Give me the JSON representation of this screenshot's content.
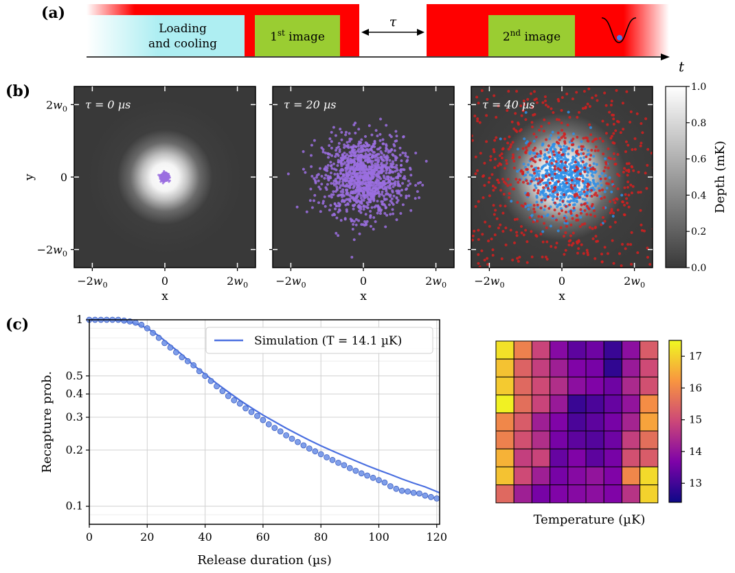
{
  "panel_labels": [
    "(a)",
    "(b)",
    "(c)"
  ],
  "timeline": {
    "loading_line1": "Loading",
    "loading_line2": "and cooling",
    "image1_base": "1",
    "image1_sup": "st",
    "image1_rest": " image",
    "image2_base": "2",
    "image2_sup": "nd",
    "image2_rest": " image",
    "tau": "τ",
    "t_label": "t",
    "colors": {
      "laser": "#ff0000",
      "loading": "#aeeef2",
      "image": "#9acd32"
    }
  },
  "chart_data": [
    {
      "type": "scatter",
      "panel": "b1",
      "annotation": "τ = 0 µs",
      "xlabel": "x",
      "ylabel": "y",
      "xticks": [
        "−2w0",
        "0",
        "2w0"
      ],
      "yticks": [
        "2w0",
        "0",
        "−2w0"
      ],
      "xlim": [
        -2.5,
        2.5
      ],
      "ylim": [
        -2.5,
        2.5
      ],
      "series": [
        {
          "color": "#9b6ee0",
          "spread": 0.05,
          "count": 500
        }
      ]
    },
    {
      "type": "scatter",
      "panel": "b2",
      "annotation": "τ = 20 µs",
      "xlabel": "x",
      "xticks": [
        "−2w0",
        "0",
        "2w0"
      ],
      "xlim": [
        -2.5,
        2.5
      ],
      "ylim": [
        -2.5,
        2.5
      ],
      "series": [
        {
          "color": "#9b6ee0",
          "spread": 0.55,
          "count": 1200
        }
      ]
    },
    {
      "type": "scatter",
      "panel": "b3",
      "annotation": "τ = 40 µs",
      "xlabel": "x",
      "xticks": [
        "−2w0",
        "0",
        "2w0"
      ],
      "xlim": [
        -2.5,
        2.5
      ],
      "ylim": [
        -2.5,
        2.5
      ],
      "series": [
        {
          "color": "#2f8fe8",
          "spread": 0.5,
          "count": 700
        },
        {
          "color": "#d42020",
          "spread": 1.6,
          "count": 800
        }
      ]
    },
    {
      "type": "heatmap",
      "panel": "b-colorbar",
      "ylabel": "Depth (mK)",
      "ticks": [
        "0.0",
        "0.2",
        "0.4",
        "0.6",
        "0.8",
        "1.0"
      ],
      "range": [
        0,
        1
      ]
    },
    {
      "type": "line",
      "panel": "c-main",
      "xlabel": "Release duration (µs)",
      "ylabel": "Recapture prob.",
      "xlim": [
        0,
        121
      ],
      "ylim": [
        0.08,
        1
      ],
      "yscale": "log",
      "xticks": [
        0,
        20,
        40,
        60,
        80,
        100,
        120
      ],
      "yticks": [
        {
          "v": 1,
          "label": "1"
        },
        {
          "v": 0.5,
          "label": "0.5"
        },
        {
          "v": 0.4,
          "label": "0.4"
        },
        {
          "v": 0.3,
          "label": "0.3"
        },
        {
          "v": 0.2,
          "label": "0.2"
        },
        {
          "v": 0.1,
          "label": "0.1"
        }
      ],
      "grid": true,
      "legend": "top-right",
      "series": [
        {
          "name": "Simulation (T = 14.1 µK)",
          "kind": "line",
          "color": "#4a6fe0",
          "x": [
            0,
            4,
            8,
            12,
            16,
            20,
            24,
            28,
            32,
            36,
            40,
            44,
            48,
            52,
            56,
            60,
            64,
            68,
            72,
            76,
            80,
            84,
            88,
            92,
            96,
            100,
            104,
            108,
            112,
            116,
            121
          ],
          "y": [
            1,
            1,
            0.998,
            0.985,
            0.955,
            0.9,
            0.82,
            0.73,
            0.65,
            0.57,
            0.51,
            0.455,
            0.41,
            0.37,
            0.337,
            0.308,
            0.284,
            0.262,
            0.243,
            0.226,
            0.211,
            0.198,
            0.186,
            0.175,
            0.165,
            0.156,
            0.148,
            0.14,
            0.133,
            0.127,
            0.118
          ]
        },
        {
          "kind": "points",
          "color": "#6a8ee6",
          "x": [
            0,
            2,
            4,
            6,
            8,
            10,
            12,
            14,
            16,
            18,
            20,
            22,
            24,
            26,
            28,
            30,
            32,
            34,
            36,
            38,
            40,
            42,
            44,
            46,
            48,
            50,
            52,
            54,
            56,
            58,
            60,
            62,
            64,
            66,
            68,
            70,
            72,
            74,
            76,
            78,
            80,
            82,
            84,
            86,
            88,
            90,
            92,
            94,
            96,
            98,
            100,
            102,
            104,
            106,
            108,
            110,
            112,
            114,
            116,
            118,
            120
          ],
          "y": [
            1,
            1,
            1,
            1,
            1,
            1,
            0.99,
            0.98,
            0.965,
            0.94,
            0.9,
            0.85,
            0.8,
            0.75,
            0.71,
            0.67,
            0.63,
            0.6,
            0.57,
            0.53,
            0.5,
            0.47,
            0.44,
            0.415,
            0.39,
            0.37,
            0.355,
            0.335,
            0.32,
            0.305,
            0.29,
            0.275,
            0.263,
            0.252,
            0.24,
            0.23,
            0.221,
            0.212,
            0.204,
            0.197,
            0.19,
            0.183,
            0.177,
            0.171,
            0.166,
            0.16,
            0.155,
            0.15,
            0.146,
            0.142,
            0.138,
            0.134,
            0.128,
            0.124,
            0.121,
            0.12,
            0.118,
            0.117,
            0.114,
            0.112,
            0.11
          ]
        }
      ]
    },
    {
      "type": "heatmap",
      "panel": "c-inset",
      "xlabel": "Temperature (µK)",
      "colorbar_ticks": [
        13,
        14,
        15,
        16,
        17
      ],
      "range": [
        12.4,
        17.5
      ],
      "values": [
        [
          17.2,
          15.9,
          14.9,
          13.8,
          13.3,
          13.5,
          12.9,
          13.9,
          15.3
        ],
        [
          16.8,
          15.4,
          14.8,
          14.2,
          13.7,
          13.6,
          12.8,
          14.1,
          15.0
        ],
        [
          16.9,
          15.5,
          15.0,
          14.5,
          13.9,
          13.7,
          13.5,
          14.4,
          15.1
        ],
        [
          17.4,
          15.6,
          14.9,
          14.1,
          12.9,
          13.1,
          13.4,
          14.0,
          16.1
        ],
        [
          16.0,
          15.3,
          14.2,
          13.7,
          13.1,
          13.3,
          13.6,
          14.3,
          16.4
        ],
        [
          15.9,
          15.1,
          14.5,
          13.6,
          13.3,
          13.2,
          13.5,
          14.8,
          15.6
        ],
        [
          16.6,
          14.8,
          14.9,
          13.4,
          13.7,
          13.3,
          13.6,
          15.1,
          15.3
        ],
        [
          16.8,
          15.0,
          14.2,
          13.6,
          13.8,
          14.0,
          13.7,
          16.0,
          17.1
        ],
        [
          15.5,
          14.2,
          13.6,
          13.7,
          13.8,
          13.9,
          13.7,
          14.6,
          17.0
        ]
      ]
    }
  ]
}
